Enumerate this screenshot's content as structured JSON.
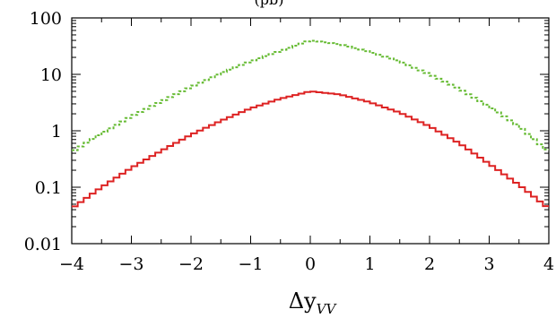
{
  "clipped_label": "(pb)",
  "chart_data": {
    "type": "line",
    "title": "",
    "xlabel_main": "Δy",
    "xlabel_sub": "VV",
    "ylabel": "",
    "xlim": [
      -4,
      4
    ],
    "ylim": [
      0.01,
      100
    ],
    "yscale": "log",
    "grid": false,
    "x_ticks": [
      -4,
      -3,
      -2,
      -1,
      0,
      1,
      2,
      3,
      4
    ],
    "x_tick_labels": [
      "−4",
      "−3",
      "−2",
      "−1",
      "0",
      "1",
      "2",
      "3",
      "4"
    ],
    "y_ticks": [
      0.01,
      0.1,
      1,
      10,
      100
    ],
    "y_tick_labels": [
      "0.01",
      "0.1",
      "1",
      "10",
      "100"
    ],
    "series": [
      {
        "color": "#66bb33",
        "style": "dashed-step",
        "x": [
          -4,
          -3.5,
          -3,
          -2.5,
          -2,
          -1.5,
          -1,
          -0.5,
          0,
          0.5,
          1,
          1.5,
          2,
          2.5,
          3,
          3.5,
          4
        ],
        "values": [
          0.42,
          0.9,
          1.8,
          3.3,
          6.0,
          10.5,
          17,
          26,
          40,
          34,
          25,
          17,
          10,
          5.5,
          2.7,
          1.2,
          0.42
        ]
      },
      {
        "color": "#dd2222",
        "style": "solid-step",
        "x": [
          -4,
          -3.5,
          -3,
          -2.5,
          -2,
          -1.5,
          -1,
          -0.5,
          0,
          0.5,
          1,
          1.5,
          2,
          2.5,
          3,
          3.5,
          4
        ],
        "values": [
          0.042,
          0.1,
          0.22,
          0.44,
          0.85,
          1.5,
          2.5,
          3.7,
          5.0,
          4.4,
          3.2,
          2.1,
          1.2,
          0.6,
          0.26,
          0.11,
          0.042
        ]
      }
    ]
  }
}
